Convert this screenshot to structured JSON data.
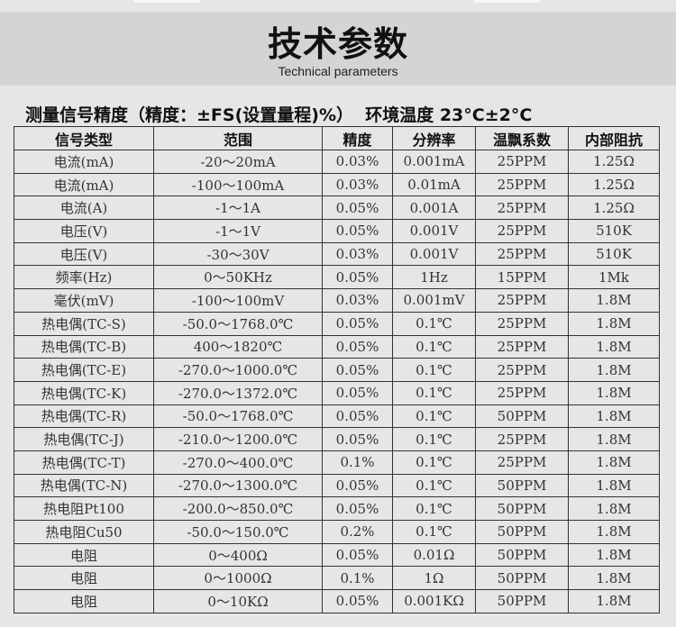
{
  "header": {
    "title": "技术参数",
    "subtitle": "Technical parameters"
  },
  "note": "测量信号精度（精度：±FS(设置量程)%）  环境温度 23°C±2°C",
  "table": {
    "columns": [
      "信号类型",
      "范围",
      "精度",
      "分辨率",
      "温飘系数",
      "内部阻抗"
    ],
    "rows": [
      [
        "电流(mA)",
        "-20～20mA",
        "0.03%",
        "0.001mA",
        "25PPM",
        "1.25Ω"
      ],
      [
        "电流(mA)",
        "-100～100mA",
        "0.03%",
        "0.01mA",
        "25PPM",
        "1.25Ω"
      ],
      [
        "电流(A)",
        "-1～1A",
        "0.05%",
        "0.001A",
        "25PPM",
        "1.25Ω"
      ],
      [
        "电压(V)",
        "-1～1V",
        "0.05%",
        "0.001V",
        "25PPM",
        "510K"
      ],
      [
        "电压(V)",
        "-30～30V",
        "0.03%",
        "0.001V",
        "25PPM",
        "510K"
      ],
      [
        "频率(Hz)",
        "0～50KHz",
        "0.05%",
        "1Hz",
        "15PPM",
        "1Mk"
      ],
      [
        "毫伏(mV)",
        "-100～100mV",
        "0.03%",
        "0.001mV",
        "25PPM",
        "1.8M"
      ],
      [
        "热电偶(TC-S)",
        "-50.0～1768.0℃",
        "0.05%",
        "0.1℃",
        "25PPM",
        "1.8M"
      ],
      [
        "热电偶(TC-B)",
        "400～1820℃",
        "0.05%",
        "0.1℃",
        "25PPM",
        "1.8M"
      ],
      [
        "热电偶(TC-E)",
        "-270.0～1000.0℃",
        "0.05%",
        "0.1℃",
        "25PPM",
        "1.8M"
      ],
      [
        "热电偶(TC-K)",
        "-270.0～1372.0℃",
        "0.05%",
        "0.1℃",
        "25PPM",
        "1.8M"
      ],
      [
        "热电偶(TC-R)",
        "-50.0～1768.0℃",
        "0.05%",
        "0.1℃",
        "50PPM",
        "1.8M"
      ],
      [
        "热电偶(TC-J)",
        "-210.0～1200.0℃",
        "0.05%",
        "0.1℃",
        "25PPM",
        "1.8M"
      ],
      [
        "热电偶(TC-T)",
        "-270.0～400.0℃",
        "0.1%",
        "0.1℃",
        "25PPM",
        "1.8M"
      ],
      [
        "热电偶(TC-N)",
        "-270.0～1300.0℃",
        "0.05%",
        "0.1℃",
        "50PPM",
        "1.8M"
      ],
      [
        "热电阻Pt100",
        "-200.0～850.0℃",
        "0.05%",
        "0.1℃",
        "50PPM",
        "1.8M"
      ],
      [
        "热电阻Cu50",
        "-50.0～150.0℃",
        "0.2%",
        "0.1℃",
        "50PPM",
        "1.8M"
      ],
      [
        "电阻",
        "0～400Ω",
        "0.05%",
        "0.01Ω",
        "50PPM",
        "1.8M"
      ],
      [
        "电阻",
        "0～1000Ω",
        "0.1%",
        "1Ω",
        "50PPM",
        "1.8M"
      ],
      [
        "电阻",
        "0～10KΩ",
        "0.05%",
        "0.001KΩ",
        "50PPM",
        "1.8M"
      ]
    ]
  }
}
